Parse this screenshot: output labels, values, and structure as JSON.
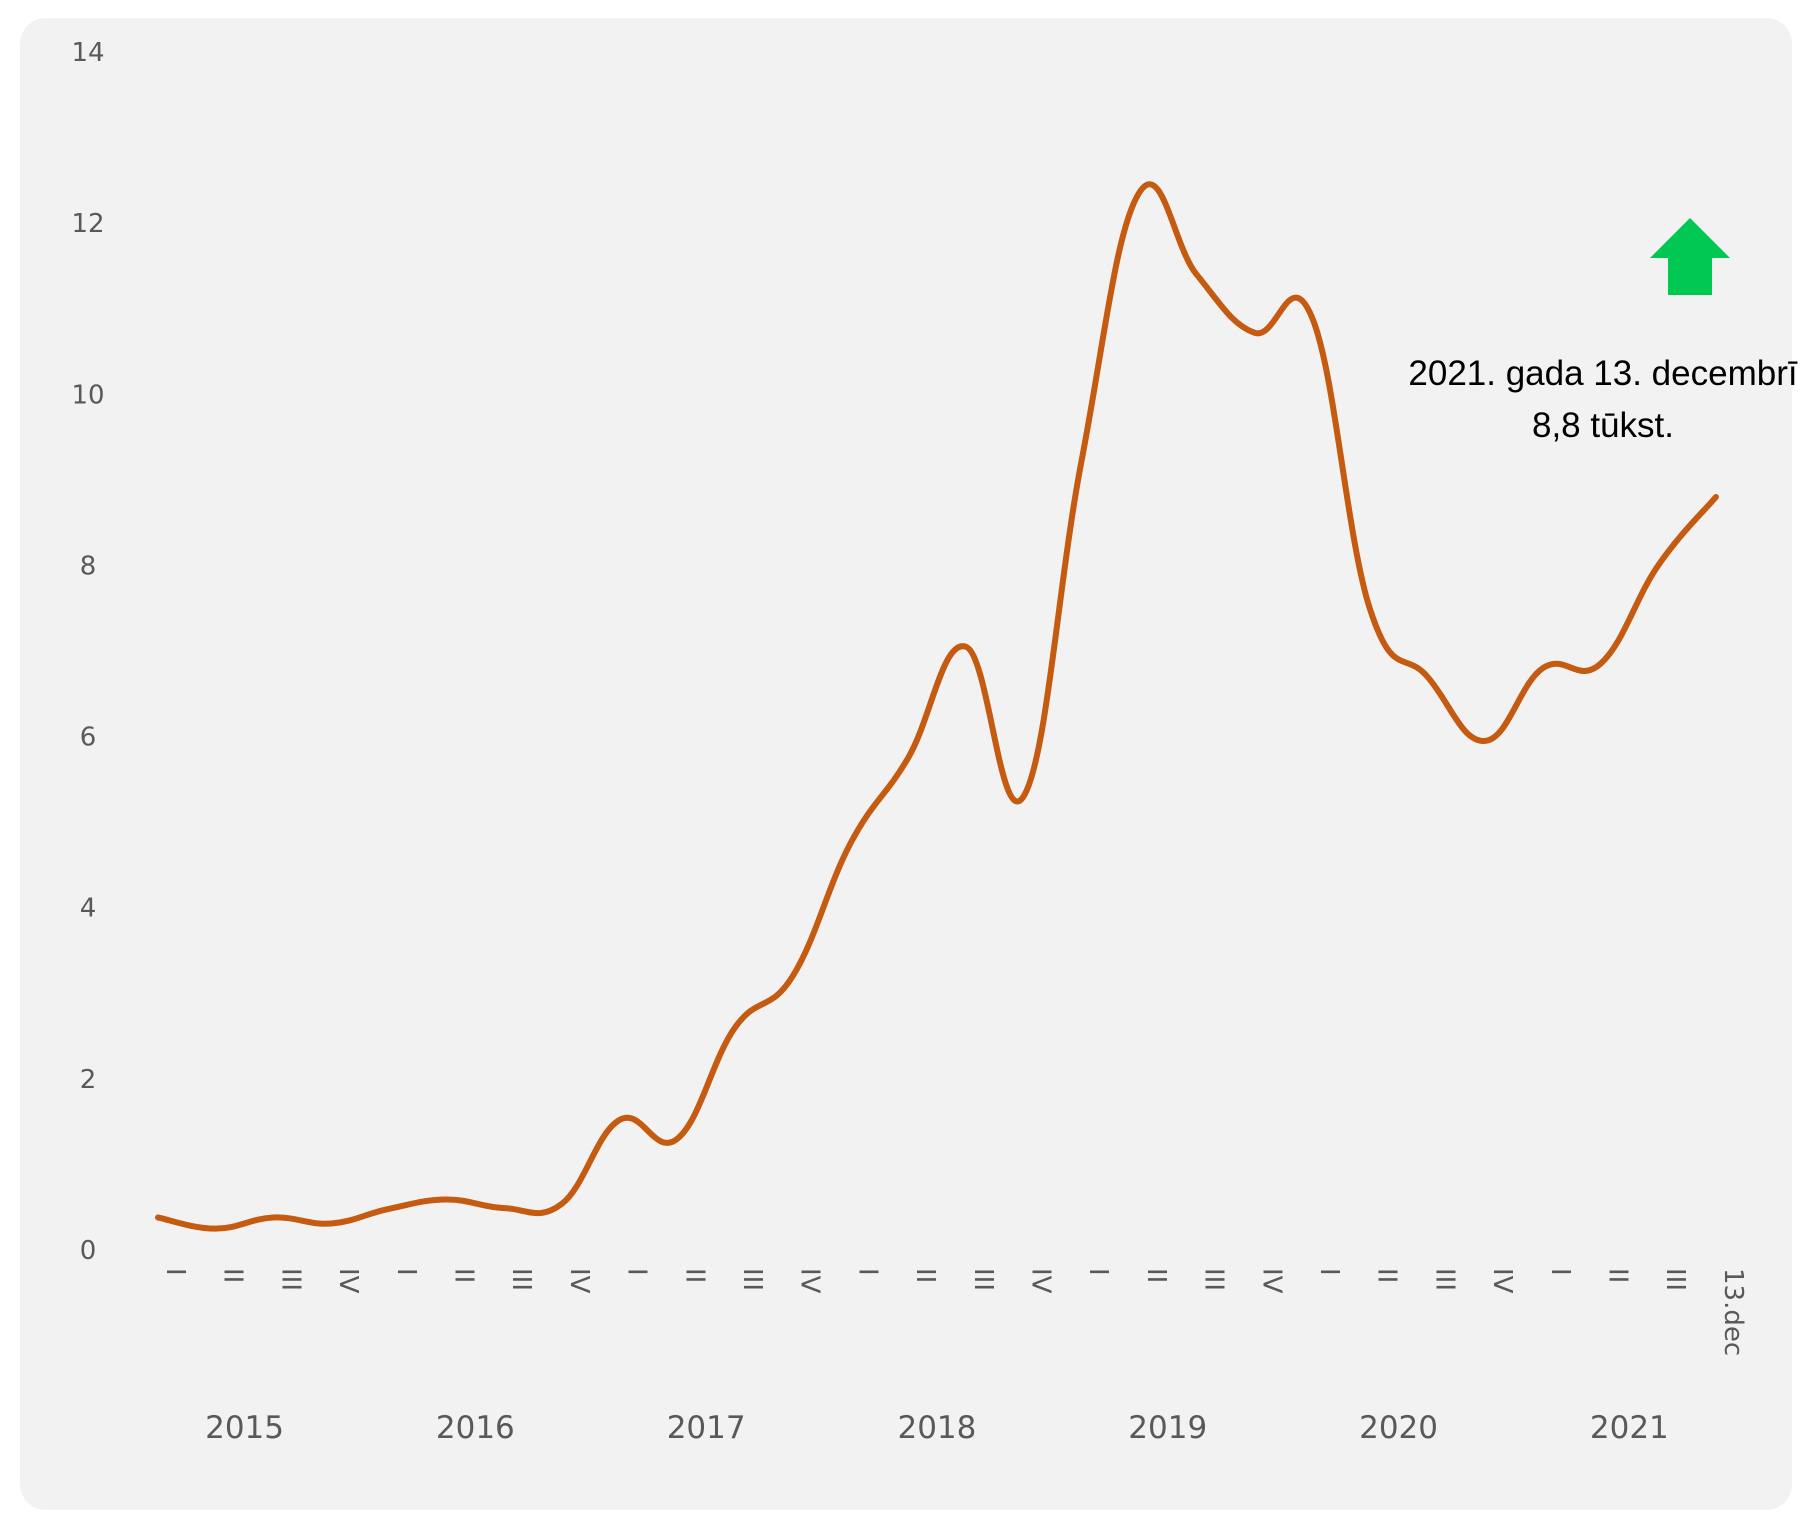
{
  "chart_data": {
    "type": "line",
    "title": "",
    "xlabel": "",
    "ylabel": "",
    "ylim": [
      0,
      14
    ],
    "y_ticks": [
      0,
      2,
      4,
      6,
      8,
      10,
      12,
      14
    ],
    "grid": false,
    "legend": "none",
    "x": [
      "I",
      "II",
      "III",
      "IV",
      "I",
      "II",
      "III",
      "IV",
      "I",
      "II",
      "III",
      "IV",
      "I",
      "II",
      "III",
      "IV",
      "I",
      "II",
      "III",
      "IV",
      "I",
      "II",
      "III",
      "IV",
      "I",
      "II",
      "III",
      "13.dec"
    ],
    "years": [
      "2015",
      "2016",
      "2017",
      "2018",
      "2019",
      "2020",
      "2021"
    ],
    "series": [
      {
        "values": [
          0.38,
          0.25,
          0.38,
          0.31,
          0.48,
          0.59,
          0.49,
          0.54,
          1.52,
          1.3,
          2.6,
          3.2,
          4.75,
          5.75,
          7.05,
          5.3,
          9.2,
          12.35,
          11.4,
          10.72,
          10.9,
          7.5,
          6.7,
          5.95,
          6.8,
          6.85,
          8.0,
          8.8
        ],
        "color": "#C55A11"
      }
    ],
    "annotation": {
      "line1": "2021. gada 13. decembrī",
      "line2": "8,8 tūkst.",
      "arrow_icon": "arrow-up-icon",
      "arrow_color": "#00C853"
    },
    "background_color": "#F2F2F2"
  }
}
